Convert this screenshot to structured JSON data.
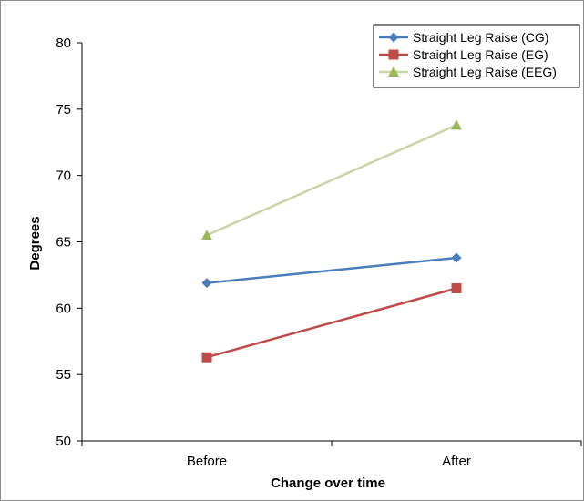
{
  "chart_data": {
    "type": "line",
    "categories": [
      "Before",
      "After"
    ],
    "series": [
      {
        "name": "Straight Leg Raise (CG)",
        "values": [
          61.9,
          63.8
        ],
        "color": "#4a7ebb",
        "marker": "diamond"
      },
      {
        "name": "Straight Leg Raise (EG)",
        "values": [
          56.3,
          61.5
        ],
        "color": "#be4b48",
        "marker": "square"
      },
      {
        "name": "Straight Leg Raise (EEG)",
        "values": [
          65.5,
          73.8
        ],
        "color": "#98b954",
        "line_color": "#c9d5a6",
        "marker": "triangle"
      }
    ],
    "xlabel": "Change over time",
    "ylabel": "Degrees",
    "ylim": [
      50,
      80
    ],
    "yticks": [
      "50",
      "55",
      "60",
      "65",
      "70",
      "75",
      "80"
    ],
    "grid": false,
    "legend": "top-right"
  }
}
